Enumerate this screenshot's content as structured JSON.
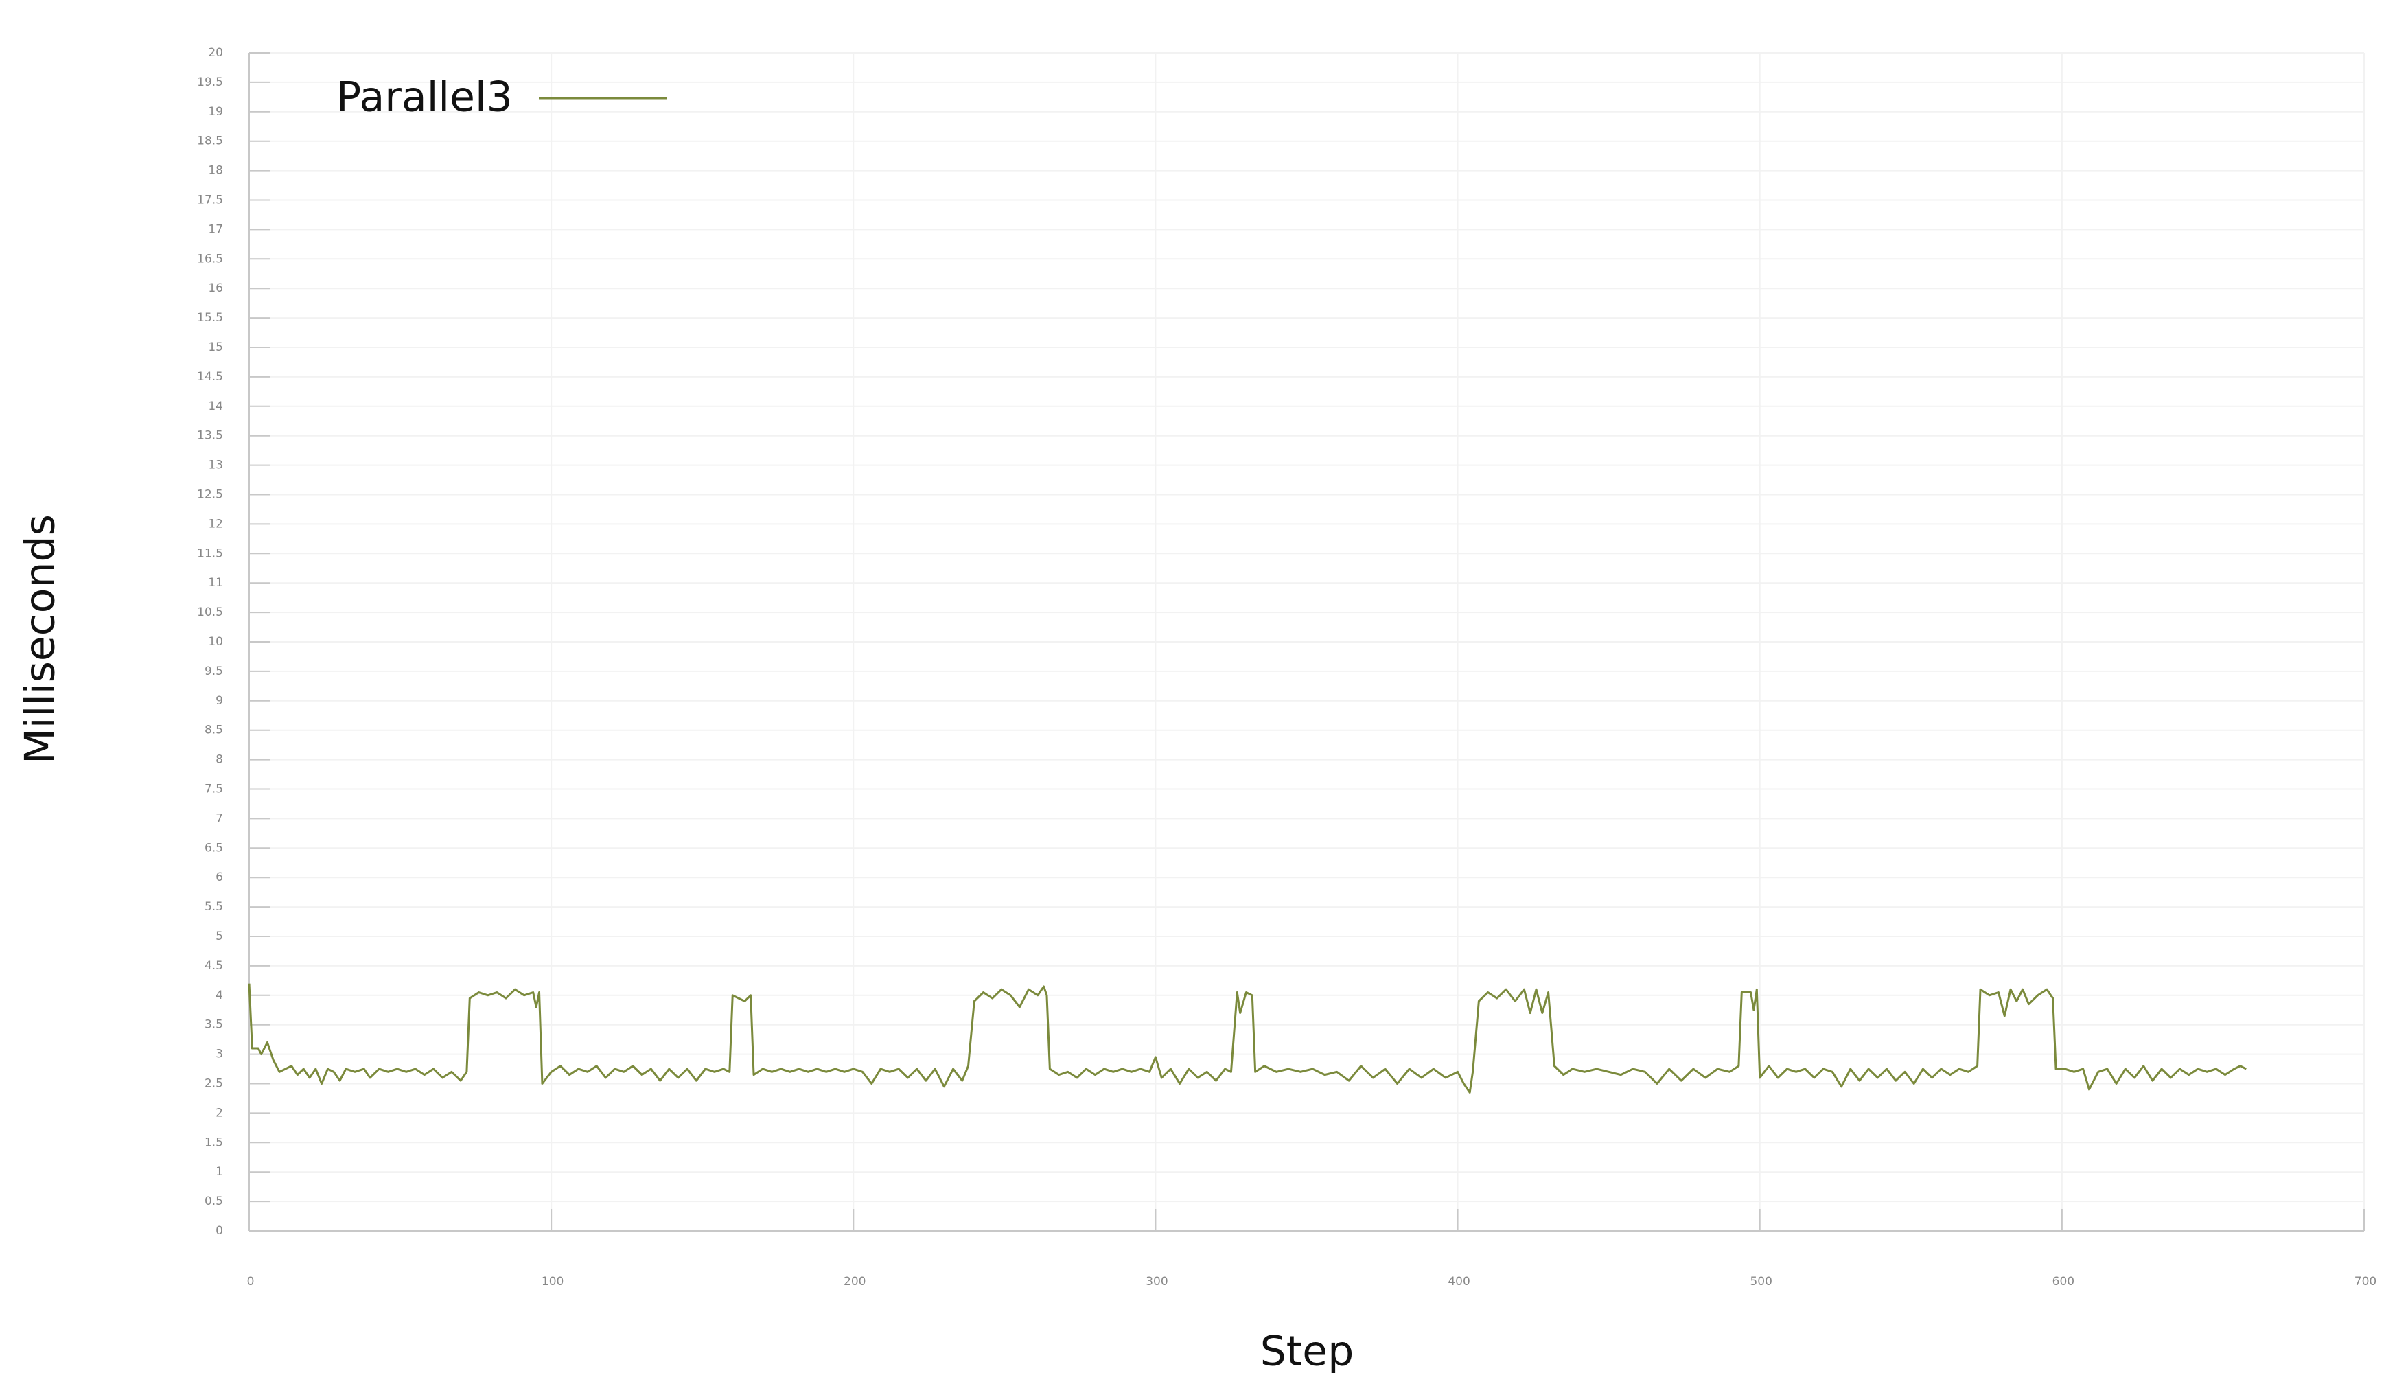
{
  "chart_data": {
    "type": "line",
    "xlabel": "Step",
    "ylabel": "Milliseconds",
    "xlim": [
      0,
      700
    ],
    "xticks": [
      0,
      100,
      200,
      300,
      400,
      500,
      600,
      700
    ],
    "ylim": [
      0,
      20
    ],
    "yticks": [
      0,
      0.5,
      1,
      1.5,
      2,
      2.5,
      3,
      3.5,
      4,
      4.5,
      5,
      5.5,
      6,
      6.5,
      7,
      7.5,
      8,
      8.5,
      9,
      9.5,
      10,
      10.5,
      11,
      11.5,
      12,
      12.5,
      13,
      13.5,
      14,
      14.5,
      15,
      15.5,
      16,
      16.5,
      17,
      17.5,
      18,
      18.5,
      19,
      19.5,
      20
    ],
    "grid": true,
    "legend": "top-left",
    "x": [
      0,
      1,
      3,
      4,
      6,
      8,
      10,
      12,
      14,
      16,
      18,
      20,
      22,
      24,
      26,
      28,
      30,
      32,
      35,
      38,
      40,
      43,
      46,
      49,
      52,
      55,
      58,
      61,
      64,
      67,
      70,
      72,
      73,
      76,
      79,
      82,
      85,
      88,
      91,
      94,
      95,
      96,
      97,
      100,
      103,
      106,
      109,
      112,
      115,
      118,
      121,
      124,
      127,
      130,
      133,
      136,
      139,
      142,
      145,
      148,
      151,
      154,
      157,
      159,
      160,
      162,
      164,
      166,
      167,
      170,
      173,
      176,
      179,
      182,
      185,
      188,
      191,
      194,
      197,
      200,
      203,
      206,
      209,
      212,
      215,
      218,
      221,
      224,
      227,
      230,
      233,
      236,
      238,
      240,
      243,
      246,
      249,
      252,
      255,
      258,
      261,
      263,
      264,
      265,
      268,
      271,
      274,
      277,
      280,
      283,
      286,
      289,
      292,
      295,
      298,
      300,
      302,
      305,
      308,
      311,
      314,
      317,
      320,
      323,
      325,
      327,
      328,
      330,
      332,
      333,
      336,
      340,
      344,
      348,
      352,
      356,
      360,
      364,
      368,
      372,
      376,
      380,
      384,
      388,
      392,
      396,
      400,
      402,
      404,
      405,
      407,
      410,
      413,
      416,
      419,
      422,
      424,
      426,
      428,
      430,
      432,
      435,
      438,
      442,
      446,
      450,
      454,
      458,
      462,
      466,
      470,
      474,
      478,
      482,
      486,
      490,
      493,
      494,
      497,
      498,
      499,
      500,
      503,
      506,
      509,
      512,
      515,
      518,
      521,
      524,
      527,
      530,
      533,
      536,
      539,
      542,
      545,
      548,
      551,
      554,
      557,
      560,
      563,
      566,
      569,
      572,
      573,
      576,
      579,
      581,
      583,
      585,
      587,
      589,
      592,
      595,
      597,
      598,
      601,
      604,
      607,
      609,
      612,
      615,
      618,
      621,
      624,
      627,
      630,
      633,
      636,
      639,
      642,
      645,
      648,
      651,
      654,
      657,
      659,
      661
    ],
    "series": [
      {
        "name": "Parallel3",
        "color": "#7b8a3c",
        "values": [
          4.2,
          3.1,
          3.1,
          3.0,
          3.2,
          2.9,
          2.7,
          2.75,
          2.8,
          2.65,
          2.75,
          2.6,
          2.75,
          2.5,
          2.75,
          2.7,
          2.55,
          2.75,
          2.7,
          2.75,
          2.6,
          2.75,
          2.7,
          2.75,
          2.7,
          2.75,
          2.65,
          2.75,
          2.6,
          2.7,
          2.55,
          2.7,
          3.95,
          4.05,
          4.0,
          4.05,
          3.95,
          4.1,
          4.0,
          4.05,
          3.8,
          4.05,
          2.5,
          2.7,
          2.8,
          2.65,
          2.75,
          2.7,
          2.8,
          2.6,
          2.75,
          2.7,
          2.8,
          2.65,
          2.75,
          2.55,
          2.75,
          2.6,
          2.75,
          2.55,
          2.75,
          2.7,
          2.75,
          2.7,
          4.0,
          3.95,
          3.9,
          4.0,
          2.65,
          2.75,
          2.7,
          2.75,
          2.7,
          2.75,
          2.7,
          2.75,
          2.7,
          2.75,
          2.7,
          2.75,
          2.7,
          2.5,
          2.75,
          2.7,
          2.75,
          2.6,
          2.75,
          2.55,
          2.75,
          2.45,
          2.75,
          2.55,
          2.8,
          3.9,
          4.05,
          3.95,
          4.1,
          4.0,
          3.8,
          4.1,
          4.0,
          4.15,
          4.0,
          2.75,
          2.65,
          2.7,
          2.6,
          2.75,
          2.65,
          2.75,
          2.7,
          2.75,
          2.7,
          2.75,
          2.7,
          2.95,
          2.6,
          2.75,
          2.5,
          2.75,
          2.6,
          2.7,
          2.55,
          2.75,
          2.7,
          4.05,
          3.7,
          4.05,
          4.0,
          2.7,
          2.8,
          2.7,
          2.75,
          2.7,
          2.75,
          2.65,
          2.7,
          2.55,
          2.8,
          2.6,
          2.75,
          2.5,
          2.75,
          2.6,
          2.75,
          2.6,
          2.7,
          2.5,
          2.35,
          2.7,
          3.9,
          4.05,
          3.95,
          4.1,
          3.9,
          4.1,
          3.7,
          4.1,
          3.7,
          4.05,
          2.8,
          2.65,
          2.75,
          2.7,
          2.75,
          2.7,
          2.65,
          2.75,
          2.7,
          2.5,
          2.75,
          2.55,
          2.75,
          2.6,
          2.75,
          2.7,
          2.8,
          4.05,
          4.05,
          3.75,
          4.1,
          2.6,
          2.8,
          2.6,
          2.75,
          2.7,
          2.75,
          2.6,
          2.75,
          2.7,
          2.45,
          2.75,
          2.55,
          2.75,
          2.6,
          2.75,
          2.55,
          2.7,
          2.5,
          2.75,
          2.6,
          2.75,
          2.65,
          2.75,
          2.7,
          2.8,
          4.1,
          4.0,
          4.05,
          3.65,
          4.1,
          3.9,
          4.1,
          3.85,
          4.0,
          4.1,
          3.95,
          2.75,
          2.75,
          2.7,
          2.75,
          2.4,
          2.7,
          2.75,
          2.5,
          2.75,
          2.6,
          2.8,
          2.55,
          2.75,
          2.6,
          2.75,
          2.65,
          2.75,
          2.7,
          2.75,
          2.65,
          2.75,
          2.8,
          2.75
        ]
      }
    ]
  }
}
